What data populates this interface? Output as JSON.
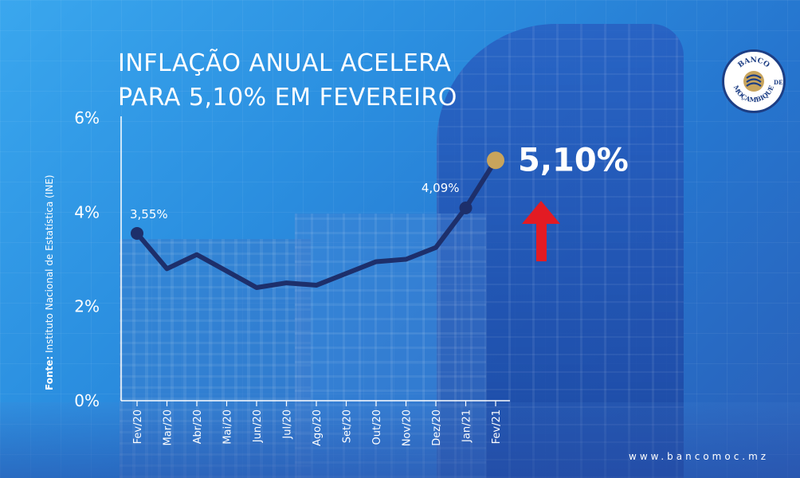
{
  "title_lines": [
    "INFLAÇÃO ANUAL ACELERA",
    "PARA 5,10% EM FEVEREIRO"
  ],
  "source": {
    "label": "Fonte:",
    "text": "Instituto Nacional de Estatística (INE)"
  },
  "logo": {
    "text_top": "BANCO",
    "text_bottom": "MOÇAMBIQUE",
    "text_de": "DE",
    "icon": "banco-de-mocambique-seal"
  },
  "website": "www.bancomoc.mz",
  "colors": {
    "line": "#1d2f6b",
    "highlight_point": "#c8a45c",
    "arrow": "#e31b23",
    "background": "#2b8fe0"
  },
  "chart_data": {
    "type": "line",
    "title": "INFLAÇÃO ANUAL ACELERA PARA 5,10% EM FEVEREIRO",
    "xlabel": "",
    "ylabel": "",
    "categories": [
      "Fev/20",
      "Mar/20",
      "Abr/20",
      "Mai/20",
      "Jun/20",
      "Jul/20",
      "Ago/20",
      "Set/20",
      "Out/20",
      "Nov/20",
      "Dez/20",
      "Jan/21",
      "Fev/21"
    ],
    "yticks": [
      "0%",
      "2%",
      "4%",
      "6%"
    ],
    "ylim": [
      0,
      6
    ],
    "series": [
      {
        "values": [
          3.55,
          2.8,
          3.1,
          2.75,
          2.4,
          2.5,
          2.45,
          2.7,
          2.95,
          3.0,
          3.25,
          4.09,
          5.1
        ]
      }
    ],
    "annotations": [
      {
        "index": 0,
        "label": "3,55%"
      },
      {
        "index": 11,
        "label": "4,09%"
      },
      {
        "index": 12,
        "label": "5,10%",
        "highlight": true,
        "arrow": "up"
      }
    ],
    "grid": false
  }
}
